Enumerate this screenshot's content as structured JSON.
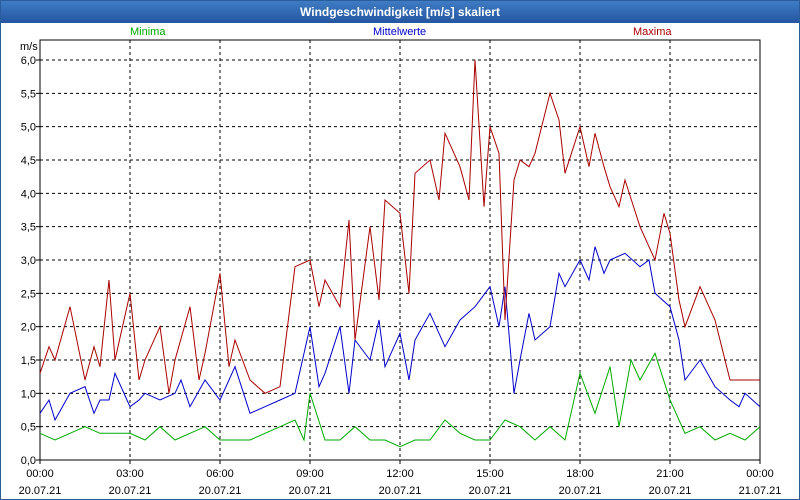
{
  "chart_data": {
    "type": "line",
    "title": "Windgeschwindigkeit [m/s] skaliert",
    "ylabel": "m/s",
    "ylim": [
      0,
      6.0
    ],
    "yticks": [
      "0,0",
      "0,5",
      "1,0",
      "1,5",
      "2,0",
      "2,5",
      "3,0",
      "3,5",
      "4,0",
      "4,5",
      "5,0",
      "5,5",
      "6,0"
    ],
    "xlim_hours": [
      0,
      24
    ],
    "xticks": [
      {
        "time": "00:00",
        "date": "20.07.21"
      },
      {
        "time": "03:00",
        "date": "20.07.21"
      },
      {
        "time": "06:00",
        "date": "20.07.21"
      },
      {
        "time": "09:00",
        "date": "20.07.21"
      },
      {
        "time": "12:00",
        "date": "20.07.21"
      },
      {
        "time": "15:00",
        "date": "20.07.21"
      },
      {
        "time": "18:00",
        "date": "20.07.21"
      },
      {
        "time": "21:00",
        "date": "20.07.21"
      },
      {
        "time": "00:00",
        "date": "21.07.21"
      }
    ],
    "grid": true,
    "legend": "top",
    "series": [
      {
        "name": "Minima",
        "color": "#00aa00",
        "x": [
          0,
          0.5,
          1,
          1.5,
          2,
          2.5,
          3,
          3.5,
          4,
          4.5,
          5,
          5.5,
          6,
          6.5,
          7,
          7.5,
          8,
          8.5,
          8.8,
          9,
          9.5,
          10,
          10.5,
          11,
          11.5,
          12,
          12.5,
          13,
          13.5,
          14,
          14.5,
          15,
          15.5,
          16,
          16.5,
          17,
          17.5,
          18,
          18.5,
          19,
          19.3,
          19.7,
          20,
          20.5,
          21,
          21.5,
          22,
          22.5,
          23,
          23.5,
          24
        ],
        "y": [
          0.4,
          0.3,
          0.4,
          0.5,
          0.4,
          0.4,
          0.4,
          0.3,
          0.5,
          0.3,
          0.4,
          0.5,
          0.3,
          0.3,
          0.3,
          0.4,
          0.5,
          0.6,
          0.3,
          1.0,
          0.3,
          0.3,
          0.5,
          0.3,
          0.3,
          0.2,
          0.3,
          0.3,
          0.6,
          0.4,
          0.3,
          0.3,
          0.6,
          0.5,
          0.3,
          0.5,
          0.3,
          1.3,
          0.7,
          1.4,
          0.5,
          1.5,
          1.2,
          1.6,
          0.9,
          0.4,
          0.5,
          0.3,
          0.4,
          0.3,
          0.5
        ]
      },
      {
        "name": "Mittelwerte",
        "color": "#0000cc",
        "x": [
          0,
          0.3,
          0.5,
          1,
          1.5,
          1.8,
          2,
          2.3,
          2.5,
          3,
          3.3,
          3.5,
          4,
          4.5,
          4.7,
          5,
          5.5,
          6,
          6.3,
          6.5,
          7,
          7.5,
          8,
          8.5,
          9,
          9.3,
          9.5,
          10,
          10.3,
          10.5,
          11,
          11.3,
          11.5,
          12,
          12.3,
          12.5,
          13,
          13.5,
          14,
          14.5,
          15,
          15.3,
          15.5,
          15.8,
          16,
          16.3,
          16.5,
          17,
          17.3,
          17.5,
          18,
          18.3,
          18.5,
          18.8,
          19,
          19.5,
          20,
          20.3,
          20.5,
          21,
          21.3,
          21.5,
          22,
          22.5,
          23,
          23.3,
          23.5,
          24
        ],
        "y": [
          0.7,
          0.9,
          0.6,
          1.0,
          1.1,
          0.7,
          0.9,
          0.9,
          1.3,
          0.8,
          0.9,
          1.0,
          0.9,
          1.0,
          1.2,
          0.8,
          1.2,
          0.9,
          1.2,
          1.4,
          0.7,
          0.8,
          0.9,
          1.0,
          2.0,
          1.1,
          1.3,
          2.0,
          1.0,
          1.8,
          1.5,
          2.1,
          1.4,
          1.9,
          1.2,
          1.8,
          2.2,
          1.7,
          2.1,
          2.3,
          2.6,
          2.0,
          2.6,
          1.0,
          1.5,
          2.2,
          1.8,
          2.0,
          2.8,
          2.6,
          3.0,
          2.7,
          3.2,
          2.8,
          3.0,
          3.1,
          2.9,
          3.0,
          2.5,
          2.3,
          1.8,
          1.2,
          1.5,
          1.1,
          0.9,
          0.8,
          1.0,
          0.8
        ]
      },
      {
        "name": "Maxima",
        "color": "#aa0000",
        "x": [
          0,
          0.3,
          0.5,
          1,
          1.5,
          1.8,
          2,
          2.3,
          2.5,
          3,
          3.3,
          3.5,
          4,
          4.3,
          4.5,
          5,
          5.3,
          5.5,
          6,
          6.3,
          6.5,
          7,
          7.5,
          8,
          8.5,
          9,
          9.3,
          9.5,
          10,
          10.3,
          10.5,
          11,
          11.3,
          11.5,
          12,
          12.3,
          12.5,
          13,
          13.3,
          13.5,
          14,
          14.3,
          14.5,
          14.8,
          15,
          15.3,
          15.5,
          15.8,
          16,
          16.3,
          16.5,
          17,
          17.3,
          17.5,
          18,
          18.3,
          18.5,
          18.8,
          19,
          19.3,
          19.5,
          20,
          20.5,
          20.8,
          21,
          21.3,
          21.5,
          22,
          22.5,
          23,
          23.5,
          24
        ],
        "y": [
          1.3,
          1.7,
          1.5,
          2.3,
          1.2,
          1.7,
          1.4,
          2.7,
          1.5,
          2.5,
          1.2,
          1.5,
          2.0,
          1.0,
          1.5,
          2.3,
          1.2,
          1.6,
          2.8,
          1.4,
          1.8,
          1.2,
          1.0,
          1.1,
          2.9,
          3.0,
          2.3,
          2.7,
          2.3,
          3.6,
          1.8,
          3.5,
          2.4,
          3.9,
          3.7,
          2.5,
          4.3,
          4.5,
          3.9,
          4.9,
          4.4,
          3.9,
          6.0,
          3.8,
          5.0,
          4.6,
          2.1,
          4.2,
          4.5,
          4.4,
          4.6,
          5.5,
          5.1,
          4.3,
          5.0,
          4.4,
          4.9,
          4.4,
          4.1,
          3.8,
          4.2,
          3.5,
          3.0,
          3.7,
          3.4,
          2.4,
          2.0,
          2.6,
          2.1,
          1.2,
          1.2,
          1.2
        ]
      }
    ]
  }
}
